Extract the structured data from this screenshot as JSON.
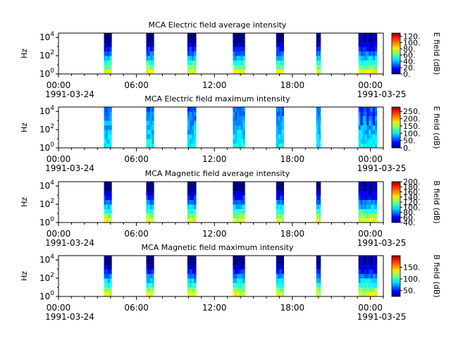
{
  "figure": {
    "panels": [
      {
        "title": "MCA  Electric field average intensity",
        "ylabel": "Hz",
        "cbar_label": "E field (dB)",
        "cbar_ticks": [
          "0.",
          "20.",
          "40.",
          "60.",
          "80.",
          "100.",
          "120."
        ]
      },
      {
        "title": "MCA  Electric field maximum intensity",
        "ylabel": "Hz",
        "cbar_label": "E field (dB)",
        "cbar_ticks": [
          "0.",
          "50.",
          "100.",
          "150.",
          "200.",
          "250."
        ]
      },
      {
        "title": "MCA  Magnetic field average intensity",
        "ylabel": "Hz",
        "cbar_label": "B field (dB)",
        "cbar_ticks": [
          "40.",
          "60.",
          "80.",
          "100.",
          "120.",
          "140.",
          "160.",
          "180.",
          "200."
        ]
      },
      {
        "title": "MCA  Magnetic field maximum intensity",
        "ylabel": "Hz",
        "cbar_label": "B field (dB)",
        "cbar_ticks": [
          "50.",
          "100.",
          "150."
        ]
      }
    ],
    "x_tick_labels": [
      "00:00",
      "06:00",
      "12:00",
      "18:00",
      "00:00"
    ],
    "x_date_labels": [
      "1991-03-24",
      "",
      "",
      "",
      "1991-03-25"
    ]
  },
  "chart_data": [
    {
      "type": "heatmap",
      "title": "MCA  Electric field average intensity",
      "ylabel": "Hz",
      "yscale": "log",
      "ylim": [
        1,
        30000
      ],
      "yticks": [
        1,
        100,
        10000
      ],
      "xlim": [
        "1991-03-24 00:00",
        "1991-03-25 01:00"
      ],
      "colorbar": {
        "label": "E field (dB)",
        "range": [
          0,
          130
        ],
        "colormap": "jet"
      },
      "data_intervals": [
        [
          "03:30",
          "04:05"
        ],
        [
          "06:45",
          "07:20"
        ],
        [
          "09:55",
          "10:35"
        ],
        [
          "13:25",
          "14:20"
        ],
        [
          "16:45",
          "17:20"
        ],
        [
          "19:50",
          "20:10"
        ],
        [
          "23:05",
          "24:30"
        ]
      ]
    },
    {
      "type": "heatmap",
      "title": "MCA  Electric field maximum intensity",
      "ylabel": "Hz",
      "yscale": "log",
      "ylim": [
        1,
        30000
      ],
      "yticks": [
        1,
        100,
        10000
      ],
      "xlim": [
        "1991-03-24 00:00",
        "1991-03-25 01:00"
      ],
      "colorbar": {
        "label": "E field (dB)",
        "range": [
          0,
          280
        ],
        "colormap": "jet"
      },
      "data_intervals": [
        [
          "03:30",
          "04:05"
        ],
        [
          "06:45",
          "07:20"
        ],
        [
          "09:55",
          "10:35"
        ],
        [
          "13:25",
          "14:20"
        ],
        [
          "16:45",
          "17:20"
        ],
        [
          "19:50",
          "20:10"
        ],
        [
          "23:05",
          "24:30"
        ]
      ]
    },
    {
      "type": "heatmap",
      "title": "MCA  Magnetic field average intensity",
      "ylabel": "Hz",
      "yscale": "log",
      "ylim": [
        1,
        30000
      ],
      "yticks": [
        1,
        100,
        10000
      ],
      "xlim": [
        "1991-03-24 00:00",
        "1991-03-25 01:00"
      ],
      "colorbar": {
        "label": "B field (dB)",
        "range": [
          40,
          200
        ],
        "colormap": "jet"
      },
      "data_intervals": [
        [
          "03:30",
          "04:05"
        ],
        [
          "06:45",
          "07:20"
        ],
        [
          "09:55",
          "10:35"
        ],
        [
          "13:25",
          "14:20"
        ],
        [
          "16:45",
          "17:20"
        ],
        [
          "19:50",
          "20:10"
        ],
        [
          "23:05",
          "24:30"
        ]
      ]
    },
    {
      "type": "heatmap",
      "title": "MCA  Magnetic field maximum intensity",
      "ylabel": "Hz",
      "yscale": "log",
      "ylim": [
        1,
        30000
      ],
      "yticks": [
        1,
        100,
        10000
      ],
      "xlim": [
        "1991-03-24 00:00",
        "1991-03-25 01:00"
      ],
      "colorbar": {
        "label": "B field (dB)",
        "range": [
          25,
          200
        ],
        "colormap": "jet"
      },
      "data_intervals": [
        [
          "03:30",
          "04:05"
        ],
        [
          "06:45",
          "07:20"
        ],
        [
          "09:55",
          "10:35"
        ],
        [
          "13:25",
          "14:20"
        ],
        [
          "16:45",
          "17:20"
        ],
        [
          "19:50",
          "20:10"
        ],
        [
          "23:05",
          "24:30"
        ]
      ]
    }
  ]
}
